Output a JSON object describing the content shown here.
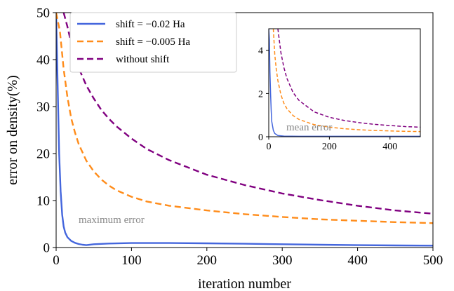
{
  "chart_data": [
    {
      "type": "line",
      "xlabel": "iteration number",
      "ylabel": "error on density(%)",
      "xlim": [
        0,
        500
      ],
      "ylim": [
        0,
        50
      ],
      "xticks": [
        0,
        100,
        200,
        300,
        400,
        500
      ],
      "yticks": [
        0,
        10,
        20,
        30,
        40,
        50
      ],
      "annotation": "maximum error",
      "legend_position": "top-left",
      "series": [
        {
          "name": "shift = −0.02 Ha",
          "color": "#4466dd",
          "style": "solid",
          "x": [
            0,
            2,
            4,
            6,
            8,
            10,
            12,
            15,
            20,
            25,
            30,
            35,
            40,
            50,
            70,
            100,
            150,
            200,
            250,
            300,
            350,
            400,
            450,
            500
          ],
          "y": [
            50,
            35,
            20,
            12,
            7,
            4.5,
            3.2,
            2.2,
            1.4,
            1.0,
            0.75,
            0.6,
            0.5,
            0.7,
            0.85,
            0.95,
            0.95,
            0.9,
            0.8,
            0.7,
            0.6,
            0.5,
            0.45,
            0.4
          ]
        },
        {
          "name": "shift = −0.005 Ha",
          "color": "#ff8c1a",
          "style": "dashed",
          "x": [
            0,
            5,
            10,
            15,
            20,
            25,
            30,
            40,
            50,
            60,
            70,
            80,
            100,
            120,
            150,
            200,
            250,
            300,
            350,
            400,
            450,
            500
          ],
          "y": [
            50,
            46,
            38,
            32,
            27.5,
            24.5,
            22,
            18.5,
            16.2,
            14.5,
            13.2,
            12.2,
            10.8,
            9.8,
            8.9,
            7.9,
            7.1,
            6.5,
            6.0,
            5.7,
            5.4,
            5.2
          ]
        },
        {
          "name": "without shift",
          "color": "#800080",
          "style": "dashed",
          "x": [
            10,
            15,
            20,
            30,
            40,
            50,
            60,
            70,
            80,
            100,
            120,
            150,
            200,
            250,
            300,
            350,
            400,
            450,
            500
          ],
          "y": [
            50,
            47,
            43.5,
            38.2,
            34.5,
            31.7,
            29.3,
            27.4,
            25.8,
            23.2,
            21.0,
            18.6,
            15.5,
            13.3,
            11.5,
            10.1,
            8.9,
            7.9,
            7.2
          ]
        }
      ]
    },
    {
      "type": "line",
      "annotation": "mean error",
      "xlim": [
        0,
        500
      ],
      "ylim": [
        0,
        5
      ],
      "xticks": [
        0,
        200,
        400
      ],
      "yticks": [
        0,
        2,
        4
      ],
      "series": [
        {
          "color": "#4466dd",
          "style": "solid",
          "x": [
            0,
            2,
            4,
            6,
            8,
            10,
            15,
            20,
            30,
            50,
            100,
            200,
            300,
            400,
            500
          ],
          "y": [
            5,
            4.5,
            3,
            2,
            1.2,
            0.7,
            0.3,
            0.15,
            0.06,
            0.03,
            0.02,
            0.02,
            0.02,
            0.02,
            0.02
          ]
        },
        {
          "color": "#ff8c1a",
          "style": "dashed",
          "x": [
            15,
            20,
            25,
            30,
            40,
            50,
            60,
            80,
            100,
            150,
            200,
            250,
            300,
            350,
            400,
            450,
            500
          ],
          "y": [
            5,
            3.8,
            3.1,
            2.6,
            1.95,
            1.55,
            1.3,
            0.98,
            0.8,
            0.56,
            0.44,
            0.37,
            0.32,
            0.29,
            0.27,
            0.25,
            0.24
          ]
        },
        {
          "color": "#800080",
          "style": "dashed",
          "x": [
            30,
            40,
            50,
            60,
            80,
            100,
            150,
            200,
            250,
            300,
            350,
            400,
            450,
            500
          ],
          "y": [
            5,
            3.9,
            3.2,
            2.7,
            2.05,
            1.68,
            1.15,
            0.9,
            0.75,
            0.65,
            0.57,
            0.52,
            0.47,
            0.44
          ]
        }
      ]
    }
  ]
}
